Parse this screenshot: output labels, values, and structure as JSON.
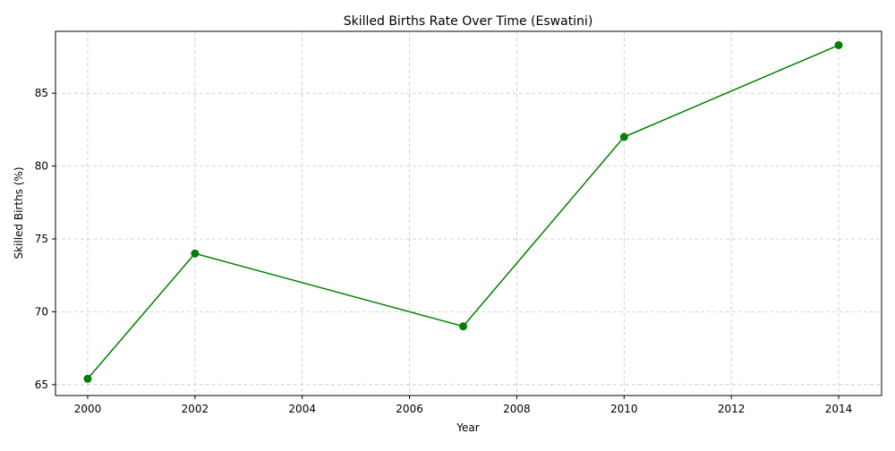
{
  "chart_data": {
    "type": "line",
    "title": "Skilled Births Rate Over Time (Eswatini)",
    "xlabel": "Year",
    "ylabel": "Skilled Births (%)",
    "xlim": [
      1999.4,
      2014.8
    ],
    "ylim": [
      64.25,
      89.25
    ],
    "x_ticks": [
      2000,
      2002,
      2004,
      2006,
      2008,
      2010,
      2012,
      2014
    ],
    "y_ticks": [
      65,
      70,
      75,
      80,
      85
    ],
    "grid": true,
    "legend": "none",
    "series": [
      {
        "color": "#008000",
        "marker": "circle",
        "x": [
          2000,
          2002,
          2007,
          2010,
          2014
        ],
        "y": [
          65.4,
          74.0,
          69.0,
          82.0,
          88.3
        ]
      }
    ]
  }
}
